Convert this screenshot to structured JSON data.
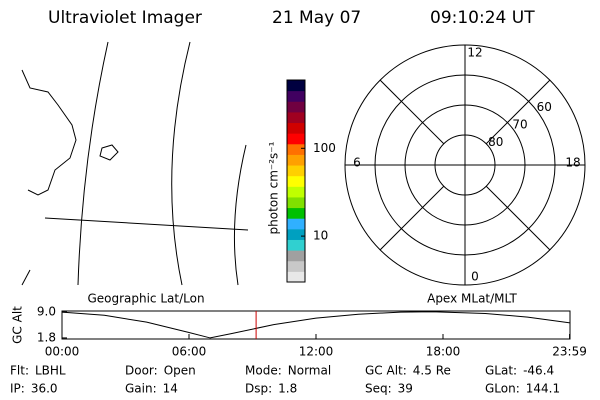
{
  "header": {
    "instrument": "Ultraviolet Imager",
    "date": "21 May 07",
    "time": "09:10:24 UT"
  },
  "colorbar": {
    "unit": "photon cm⁻²s⁻¹",
    "scale": "log",
    "range": [
      3,
      600
    ],
    "ticks": [
      10,
      100
    ]
  },
  "polar": {
    "lat_lim": [
      90,
      50
    ],
    "lat_ticks": [
      80,
      70,
      60
    ],
    "mlt_ticks": [
      12,
      6,
      0,
      18
    ]
  },
  "altitude_plot": {
    "left_label": "Geographic Lat/Lon",
    "right_label": "Apex MLat/MLT",
    "ylabel": "GC Alt",
    "ylim": [
      1.5,
      9.3
    ],
    "yticks": [
      {
        "value": 9,
        "label": "9.0"
      },
      1.8
    ],
    "xlim": [
      0,
      24
    ],
    "xticks": [
      {
        "value": 0,
        "label": "00:00"
      },
      {
        "value": 6,
        "label": "06:00"
      },
      {
        "value": 12,
        "label": "12:00"
      },
      {
        "value": 18,
        "label": "18:00"
      },
      {
        "value": 23.98,
        "label": "23:59"
      }
    ],
    "x": [
      0,
      2,
      4,
      6,
      7,
      8,
      10,
      12,
      14,
      16,
      17.5,
      20,
      22,
      24
    ],
    "values": [
      9.0,
      8.1,
      6.2,
      3.3,
      1.8,
      3.0,
      5.5,
      7.3,
      8.4,
      9.0,
      9.1,
      8.6,
      7.6,
      6.0
    ],
    "current_time": 9.17,
    "current_color": "#cc0000"
  },
  "info": [
    [
      {
        "label": "Flt:",
        "value": "LBHL"
      },
      {
        "label": "Door:",
        "value": "Open"
      },
      {
        "label": "Mode:",
        "value": "Normal"
      },
      {
        "label": "GC Alt:",
        "value": "4.5 Re"
      },
      {
        "label": "GLat:",
        "value": "-46.4"
      }
    ],
    [
      {
        "label": "IP:",
        "value": "36.0"
      },
      {
        "label": "Gain:",
        "value": "14"
      },
      {
        "label": "Dsp:",
        "value": "1.8"
      },
      {
        "label": "Seq:",
        "value": "39"
      },
      {
        "label": "GLon:",
        "value": "144.1"
      }
    ]
  ]
}
